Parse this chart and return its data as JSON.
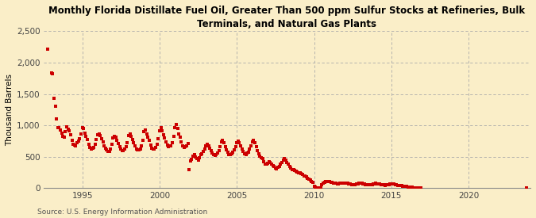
{
  "title": "Monthly Florida Distillate Fuel Oil, Greater Than 500 ppm Sulfur Stocks at Refineries, Bulk\nTerminals, and Natural Gas Plants",
  "ylabel": "Thousand Barrels",
  "source": "Source: U.S. Energy Information Administration",
  "background_color": "#faeec8",
  "dot_color": "#cc0000",
  "xlim": [
    1992.5,
    2024
  ],
  "ylim": [
    0,
    2500
  ],
  "yticks": [
    0,
    500,
    1000,
    1500,
    2000,
    2500
  ],
  "xticks": [
    1995,
    2000,
    2005,
    2010,
    2015,
    2020
  ],
  "data": [
    [
      1992.75,
      2220
    ],
    [
      1993.0,
      1840
    ],
    [
      1993.083,
      1820
    ],
    [
      1993.167,
      1430
    ],
    [
      1993.25,
      1310
    ],
    [
      1993.333,
      1100
    ],
    [
      1993.417,
      960
    ],
    [
      1993.5,
      960
    ],
    [
      1993.583,
      930
    ],
    [
      1993.667,
      880
    ],
    [
      1993.75,
      820
    ],
    [
      1993.833,
      810
    ],
    [
      1993.917,
      900
    ],
    [
      1994.0,
      980
    ],
    [
      1994.083,
      940
    ],
    [
      1994.167,
      920
    ],
    [
      1994.25,
      850
    ],
    [
      1994.333,
      760
    ],
    [
      1994.417,
      700
    ],
    [
      1994.5,
      690
    ],
    [
      1994.583,
      680
    ],
    [
      1994.667,
      720
    ],
    [
      1994.75,
      750
    ],
    [
      1994.833,
      790
    ],
    [
      1994.917,
      860
    ],
    [
      1995.0,
      970
    ],
    [
      1995.083,
      950
    ],
    [
      1995.167,
      880
    ],
    [
      1995.25,
      820
    ],
    [
      1995.333,
      770
    ],
    [
      1995.417,
      700
    ],
    [
      1995.5,
      650
    ],
    [
      1995.583,
      620
    ],
    [
      1995.667,
      640
    ],
    [
      1995.75,
      650
    ],
    [
      1995.833,
      700
    ],
    [
      1995.917,
      780
    ],
    [
      1996.0,
      850
    ],
    [
      1996.083,
      870
    ],
    [
      1996.167,
      840
    ],
    [
      1996.25,
      790
    ],
    [
      1996.333,
      740
    ],
    [
      1996.417,
      680
    ],
    [
      1996.5,
      640
    ],
    [
      1996.583,
      610
    ],
    [
      1996.667,
      580
    ],
    [
      1996.75,
      590
    ],
    [
      1996.833,
      630
    ],
    [
      1996.917,
      700
    ],
    [
      1997.0,
      800
    ],
    [
      1997.083,
      830
    ],
    [
      1997.167,
      810
    ],
    [
      1997.25,
      760
    ],
    [
      1997.333,
      710
    ],
    [
      1997.417,
      660
    ],
    [
      1997.5,
      620
    ],
    [
      1997.583,
      600
    ],
    [
      1997.667,
      600
    ],
    [
      1997.75,
      620
    ],
    [
      1997.833,
      660
    ],
    [
      1997.917,
      730
    ],
    [
      1998.0,
      840
    ],
    [
      1998.083,
      860
    ],
    [
      1998.167,
      820
    ],
    [
      1998.25,
      780
    ],
    [
      1998.333,
      720
    ],
    [
      1998.417,
      670
    ],
    [
      1998.5,
      630
    ],
    [
      1998.583,
      610
    ],
    [
      1998.667,
      610
    ],
    [
      1998.75,
      620
    ],
    [
      1998.833,
      670
    ],
    [
      1998.917,
      760
    ],
    [
      1999.0,
      900
    ],
    [
      1999.083,
      930
    ],
    [
      1999.167,
      870
    ],
    [
      1999.25,
      810
    ],
    [
      1999.333,
      760
    ],
    [
      1999.417,
      690
    ],
    [
      1999.5,
      640
    ],
    [
      1999.583,
      620
    ],
    [
      1999.667,
      630
    ],
    [
      1999.75,
      650
    ],
    [
      1999.833,
      700
    ],
    [
      1999.917,
      790
    ],
    [
      2000.0,
      920
    ],
    [
      2000.083,
      960
    ],
    [
      2000.167,
      910
    ],
    [
      2000.25,
      850
    ],
    [
      2000.333,
      800
    ],
    [
      2000.417,
      740
    ],
    [
      2000.5,
      690
    ],
    [
      2000.583,
      660
    ],
    [
      2000.667,
      670
    ],
    [
      2000.75,
      680
    ],
    [
      2000.833,
      730
    ],
    [
      2000.917,
      820
    ],
    [
      2001.0,
      960
    ],
    [
      2001.083,
      1010
    ],
    [
      2001.167,
      950
    ],
    [
      2001.25,
      870
    ],
    [
      2001.333,
      810
    ],
    [
      2001.417,
      740
    ],
    [
      2001.5,
      680
    ],
    [
      2001.583,
      650
    ],
    [
      2001.667,
      660
    ],
    [
      2001.75,
      670
    ],
    [
      2001.833,
      710
    ],
    [
      2001.917,
      300
    ],
    [
      2002.0,
      430
    ],
    [
      2002.083,
      460
    ],
    [
      2002.167,
      510
    ],
    [
      2002.25,
      530
    ],
    [
      2002.333,
      500
    ],
    [
      2002.417,
      470
    ],
    [
      2002.5,
      450
    ],
    [
      2002.583,
      490
    ],
    [
      2002.667,
      530
    ],
    [
      2002.75,
      550
    ],
    [
      2002.833,
      580
    ],
    [
      2002.917,
      620
    ],
    [
      2003.0,
      680
    ],
    [
      2003.083,
      700
    ],
    [
      2003.167,
      680
    ],
    [
      2003.25,
      640
    ],
    [
      2003.333,
      600
    ],
    [
      2003.417,
      560
    ],
    [
      2003.5,
      530
    ],
    [
      2003.583,
      520
    ],
    [
      2003.667,
      540
    ],
    [
      2003.75,
      560
    ],
    [
      2003.833,
      600
    ],
    [
      2003.917,
      660
    ],
    [
      2004.0,
      740
    ],
    [
      2004.083,
      760
    ],
    [
      2004.167,
      720
    ],
    [
      2004.25,
      660
    ],
    [
      2004.333,
      610
    ],
    [
      2004.417,
      570
    ],
    [
      2004.5,
      540
    ],
    [
      2004.583,
      530
    ],
    [
      2004.667,
      550
    ],
    [
      2004.75,
      570
    ],
    [
      2004.833,
      610
    ],
    [
      2004.917,
      660
    ],
    [
      2005.0,
      730
    ],
    [
      2005.083,
      750
    ],
    [
      2005.167,
      720
    ],
    [
      2005.25,
      670
    ],
    [
      2005.333,
      620
    ],
    [
      2005.417,
      580
    ],
    [
      2005.5,
      550
    ],
    [
      2005.583,
      540
    ],
    [
      2005.667,
      560
    ],
    [
      2005.75,
      570
    ],
    [
      2005.833,
      620
    ],
    [
      2005.917,
      680
    ],
    [
      2006.0,
      740
    ],
    [
      2006.083,
      760
    ],
    [
      2006.167,
      720
    ],
    [
      2006.25,
      660
    ],
    [
      2006.333,
      600
    ],
    [
      2006.417,
      550
    ],
    [
      2006.5,
      510
    ],
    [
      2006.583,
      490
    ],
    [
      2006.667,
      470
    ],
    [
      2006.75,
      420
    ],
    [
      2006.833,
      390
    ],
    [
      2006.917,
      380
    ],
    [
      2007.0,
      400
    ],
    [
      2007.083,
      420
    ],
    [
      2007.167,
      410
    ],
    [
      2007.25,
      380
    ],
    [
      2007.333,
      360
    ],
    [
      2007.417,
      340
    ],
    [
      2007.5,
      320
    ],
    [
      2007.583,
      310
    ],
    [
      2007.667,
      330
    ],
    [
      2007.75,
      350
    ],
    [
      2007.833,
      380
    ],
    [
      2007.917,
      410
    ],
    [
      2008.0,
      450
    ],
    [
      2008.083,
      470
    ],
    [
      2008.167,
      450
    ],
    [
      2008.25,
      410
    ],
    [
      2008.333,
      380
    ],
    [
      2008.417,
      350
    ],
    [
      2008.5,
      320
    ],
    [
      2008.583,
      300
    ],
    [
      2008.667,
      290
    ],
    [
      2008.75,
      280
    ],
    [
      2008.833,
      270
    ],
    [
      2008.917,
      260
    ],
    [
      2009.0,
      250
    ],
    [
      2009.083,
      240
    ],
    [
      2009.167,
      230
    ],
    [
      2009.25,
      220
    ],
    [
      2009.333,
      200
    ],
    [
      2009.417,
      190
    ],
    [
      2009.5,
      180
    ],
    [
      2009.583,
      160
    ],
    [
      2009.667,
      150
    ],
    [
      2009.75,
      130
    ],
    [
      2009.833,
      110
    ],
    [
      2009.917,
      90
    ],
    [
      2010.0,
      30
    ],
    [
      2010.083,
      20
    ],
    [
      2010.167,
      10
    ],
    [
      2010.25,
      8
    ],
    [
      2010.333,
      6
    ],
    [
      2010.417,
      5
    ],
    [
      2010.5,
      60
    ],
    [
      2010.583,
      80
    ],
    [
      2010.667,
      90
    ],
    [
      2010.75,
      100
    ],
    [
      2010.833,
      100
    ],
    [
      2010.917,
      110
    ],
    [
      2011.0,
      100
    ],
    [
      2011.083,
      95
    ],
    [
      2011.167,
      90
    ],
    [
      2011.25,
      85
    ],
    [
      2011.333,
      80
    ],
    [
      2011.417,
      75
    ],
    [
      2011.5,
      70
    ],
    [
      2011.583,
      70
    ],
    [
      2011.667,
      75
    ],
    [
      2011.75,
      80
    ],
    [
      2011.833,
      80
    ],
    [
      2011.917,
      85
    ],
    [
      2012.0,
      85
    ],
    [
      2012.083,
      80
    ],
    [
      2012.167,
      75
    ],
    [
      2012.25,
      70
    ],
    [
      2012.333,
      65
    ],
    [
      2012.417,
      60
    ],
    [
      2012.5,
      55
    ],
    [
      2012.583,
      55
    ],
    [
      2012.667,
      60
    ],
    [
      2012.75,
      65
    ],
    [
      2012.833,
      70
    ],
    [
      2012.917,
      75
    ],
    [
      2013.0,
      80
    ],
    [
      2013.083,
      78
    ],
    [
      2013.167,
      72
    ],
    [
      2013.25,
      66
    ],
    [
      2013.333,
      60
    ],
    [
      2013.417,
      56
    ],
    [
      2013.5,
      52
    ],
    [
      2013.583,
      50
    ],
    [
      2013.667,
      55
    ],
    [
      2013.75,
      60
    ],
    [
      2013.833,
      65
    ],
    [
      2013.917,
      70
    ],
    [
      2014.0,
      75
    ],
    [
      2014.083,
      72
    ],
    [
      2014.167,
      68
    ],
    [
      2014.25,
      63
    ],
    [
      2014.333,
      58
    ],
    [
      2014.417,
      54
    ],
    [
      2014.5,
      50
    ],
    [
      2014.583,
      48
    ],
    [
      2014.667,
      50
    ],
    [
      2014.75,
      55
    ],
    [
      2014.833,
      60
    ],
    [
      2014.917,
      65
    ],
    [
      2015.0,
      70
    ],
    [
      2015.083,
      68
    ],
    [
      2015.167,
      63
    ],
    [
      2015.25,
      58
    ],
    [
      2015.333,
      52
    ],
    [
      2015.417,
      47
    ],
    [
      2015.5,
      42
    ],
    [
      2015.583,
      40
    ],
    [
      2015.667,
      38
    ],
    [
      2015.75,
      35
    ],
    [
      2015.833,
      33
    ],
    [
      2015.917,
      30
    ],
    [
      2016.0,
      25
    ],
    [
      2016.083,
      20
    ],
    [
      2016.167,
      18
    ],
    [
      2016.25,
      15
    ],
    [
      2016.333,
      12
    ],
    [
      2016.417,
      10
    ],
    [
      2016.5,
      8
    ],
    [
      2016.583,
      7
    ],
    [
      2016.667,
      6
    ],
    [
      2016.75,
      5
    ],
    [
      2016.833,
      5
    ],
    [
      2016.917,
      5
    ],
    [
      2023.75,
      5
    ]
  ]
}
